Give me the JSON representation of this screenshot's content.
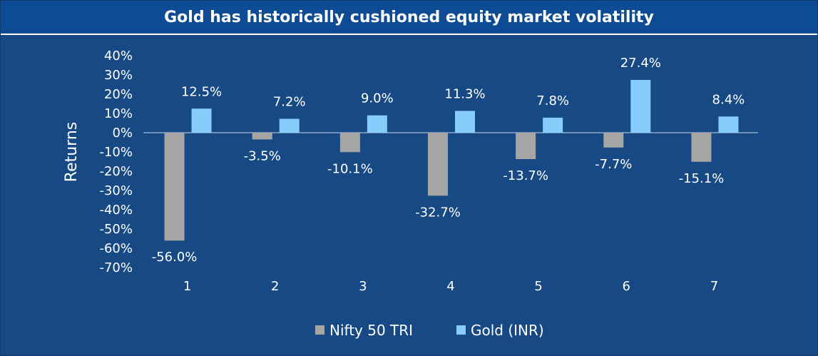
{
  "chart_data": {
    "type": "bar",
    "title": "Gold has historically cushioned equity market volatility",
    "ylabel": "Returns",
    "xlabel": "",
    "categories": [
      "1",
      "2",
      "3",
      "4",
      "5",
      "6",
      "7"
    ],
    "ylim": [
      -70,
      40
    ],
    "y_ticks": [
      "40%",
      "30%",
      "20%",
      "10%",
      "0%",
      "-10%",
      "-20%",
      "-30%",
      "-40%",
      "-50%",
      "-60%",
      "-70%"
    ],
    "y_tick_values": [
      40,
      30,
      20,
      10,
      0,
      -10,
      -20,
      -30,
      -40,
      -50,
      -60,
      -70
    ],
    "series": [
      {
        "name": "Nifty 50 TRI",
        "color": "#a5a5a5",
        "values": [
          -56.0,
          -3.5,
          -10.1,
          -32.7,
          -13.7,
          -7.7,
          -15.1
        ],
        "labels": [
          "-56.0%",
          "-3.5%",
          "-10.1%",
          "-32.7%",
          "-13.7%",
          "-7.7%",
          "-15.1%"
        ]
      },
      {
        "name": "Gold (INR)",
        "color": "#87cdfb",
        "values": [
          12.5,
          7.2,
          9.0,
          11.3,
          7.8,
          27.4,
          8.4
        ],
        "labels": [
          "12.5%",
          "7.2%",
          "9.0%",
          "11.3%",
          "7.8%",
          "27.4%",
          "8.4%"
        ]
      }
    ],
    "grid": false,
    "legend_position": "bottom"
  },
  "colors": {
    "background": "#174a84",
    "title_bar": "#0d4c95",
    "text": "#ffffff"
  }
}
